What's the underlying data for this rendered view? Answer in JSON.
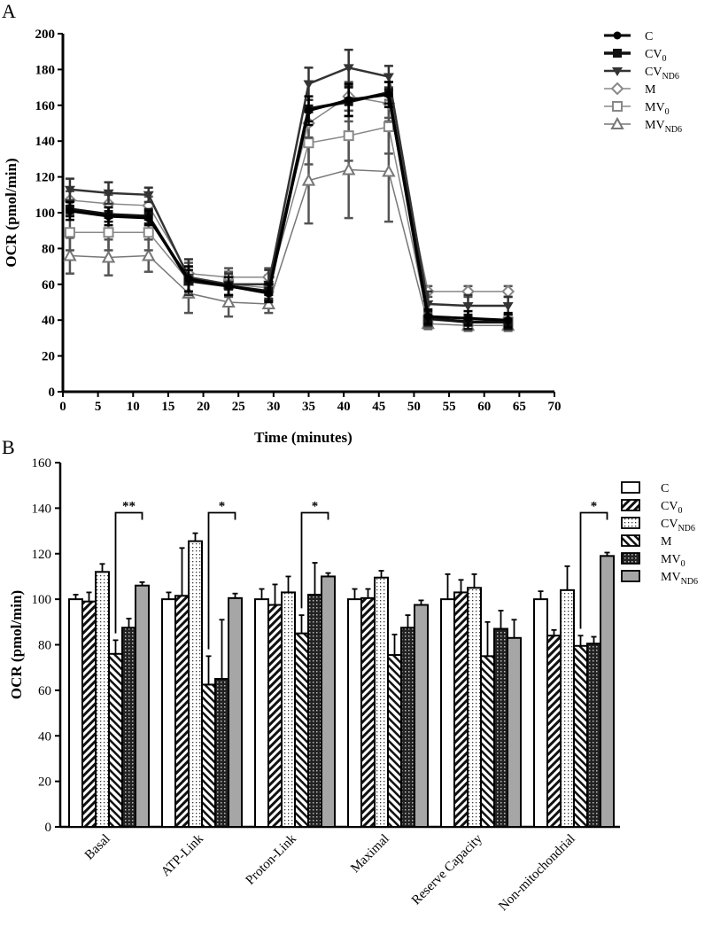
{
  "chart_data": [
    {
      "panel_label": "A",
      "type": "line",
      "xlabel": "Time (minutes)",
      "ylabel": "OCR (pmol/min)",
      "xlim": [
        0,
        70
      ],
      "ylim": [
        0,
        200
      ],
      "xticks": [
        0,
        5,
        10,
        15,
        20,
        25,
        30,
        35,
        40,
        45,
        50,
        55,
        60,
        65,
        70
      ],
      "yticks": [
        0,
        20,
        40,
        60,
        80,
        100,
        120,
        140,
        160,
        180,
        200
      ],
      "grid": false,
      "legend_position": "top-right",
      "x": [
        1,
        6.5,
        12.2,
        17.9,
        23.6,
        29.3,
        35,
        40.7,
        46.4,
        52,
        57.7,
        63.4
      ],
      "series": [
        {
          "name": {
            "main": "C",
            "sub": ""
          },
          "marker": "circle",
          "color": "#000000",
          "width": 3,
          "values": [
            101,
            98,
            97,
            63,
            59,
            55,
            157,
            163,
            166,
            42,
            41,
            40
          ],
          "errors": [
            5,
            5,
            4,
            7,
            5,
            5,
            8,
            9,
            7,
            4,
            4,
            4
          ]
        },
        {
          "name": {
            "main": "CV",
            "sub": "0"
          },
          "marker": "square",
          "color": "#111111",
          "width": 3.5,
          "values": [
            102,
            99,
            98,
            62,
            59,
            56,
            158,
            162,
            167,
            41,
            39,
            39
          ],
          "errors": [
            4,
            4,
            4,
            6,
            5,
            5,
            7,
            8,
            6,
            4,
            4,
            4
          ]
        },
        {
          "name": {
            "main": "CV",
            "sub": "ND6"
          },
          "marker": "triangle-down",
          "color": "#333333",
          "width": 2.5,
          "values": [
            113,
            111,
            110,
            64,
            60,
            60,
            172,
            181,
            176,
            49,
            48,
            48
          ],
          "errors": [
            6,
            6,
            4,
            10,
            6,
            8,
            9,
            10,
            6,
            7,
            6,
            5
          ]
        },
        {
          "name": {
            "main": "M",
            "sub": ""
          },
          "marker": "diamond",
          "color": "#888888",
          "width": 1.5,
          "values": [
            107,
            105,
            104,
            66,
            64,
            64,
            150,
            165,
            161,
            56,
            56,
            56
          ],
          "errors": [
            5,
            5,
            5,
            6,
            5,
            5,
            8,
            8,
            8,
            3,
            3,
            3
          ]
        },
        {
          "name": {
            "main": "MV",
            "sub": "0"
          },
          "marker": "square-open",
          "color": "#888888",
          "width": 1.5,
          "values": [
            89,
            89,
            89,
            62,
            60,
            58,
            139,
            143,
            148,
            40,
            39,
            39
          ],
          "errors": [
            10,
            10,
            10,
            8,
            7,
            7,
            12,
            14,
            15,
            4,
            4,
            4
          ]
        },
        {
          "name": {
            "main": "MV",
            "sub": "ND6"
          },
          "marker": "triangle-open",
          "color": "#777777",
          "width": 1.5,
          "values": [
            76,
            75,
            76,
            55,
            50,
            49,
            118,
            124,
            123,
            38,
            37,
            37
          ],
          "errors": [
            10,
            10,
            9,
            11,
            8,
            5,
            24,
            27,
            28,
            3,
            3,
            3
          ]
        }
      ]
    },
    {
      "panel_label": "B",
      "type": "bar",
      "xlabel": "",
      "ylabel": "OCR (pmol/min)",
      "ylim": [
        0,
        160
      ],
      "yticks": [
        0,
        20,
        40,
        60,
        80,
        100,
        120,
        140,
        160
      ],
      "grid": false,
      "legend_position": "top-right",
      "categories": [
        "Basal",
        "ATP-Link",
        "Proton-Link",
        "Maximal",
        "Reserve Capacity",
        "Non-mitochondrial"
      ],
      "series": [
        {
          "name": {
            "main": "C",
            "sub": ""
          },
          "pattern": "white",
          "values": [
            100,
            100,
            100,
            100,
            100,
            100
          ],
          "errors": [
            2,
            3,
            4.5,
            4.5,
            11,
            3.5
          ]
        },
        {
          "name": {
            "main": "CV",
            "sub": "0"
          },
          "pattern": "hatch-forward",
          "values": [
            99,
            101.5,
            97.5,
            100.5,
            103,
            84
          ],
          "errors": [
            4,
            21,
            9,
            4,
            5.5,
            2.5
          ]
        },
        {
          "name": {
            "main": "CV",
            "sub": "ND6"
          },
          "pattern": "dots",
          "values": [
            112,
            125.5,
            103,
            109.5,
            105,
            104
          ],
          "errors": [
            3.5,
            3.5,
            7,
            3,
            6,
            10.5
          ]
        },
        {
          "name": {
            "main": "M",
            "sub": ""
          },
          "pattern": "hatch-back",
          "values": [
            76,
            62.5,
            85,
            75.5,
            75,
            79.5
          ],
          "errors": [
            6,
            12.5,
            8,
            9,
            15,
            4.5
          ]
        },
        {
          "name": {
            "main": "MV",
            "sub": "0"
          },
          "pattern": "crosshatch",
          "values": [
            87.5,
            65,
            102,
            87.5,
            87,
            80.5
          ],
          "errors": [
            4,
            26,
            14,
            5.5,
            8,
            3
          ]
        },
        {
          "name": {
            "main": "MV",
            "sub": "ND6"
          },
          "pattern": "gray",
          "color": "#a6a6a6",
          "values": [
            106,
            100.5,
            110,
            97.5,
            83,
            119
          ],
          "errors": [
            1.5,
            2,
            1.5,
            2,
            8,
            1.5
          ]
        }
      ],
      "annotations": [
        {
          "category": "Basal",
          "from": "M",
          "to": "MVND6",
          "label": "**",
          "level": 138
        },
        {
          "category": "ATP-Link",
          "from": "M",
          "to": "MVND6",
          "label": "*",
          "level": 138
        },
        {
          "category": "Proton-Link",
          "from": "M",
          "to": "MVND6",
          "label": "*",
          "level": 138
        },
        {
          "category": "Non-mitochondrial",
          "from": "M",
          "to": "MVND6",
          "label": "*",
          "level": 138
        }
      ]
    }
  ]
}
